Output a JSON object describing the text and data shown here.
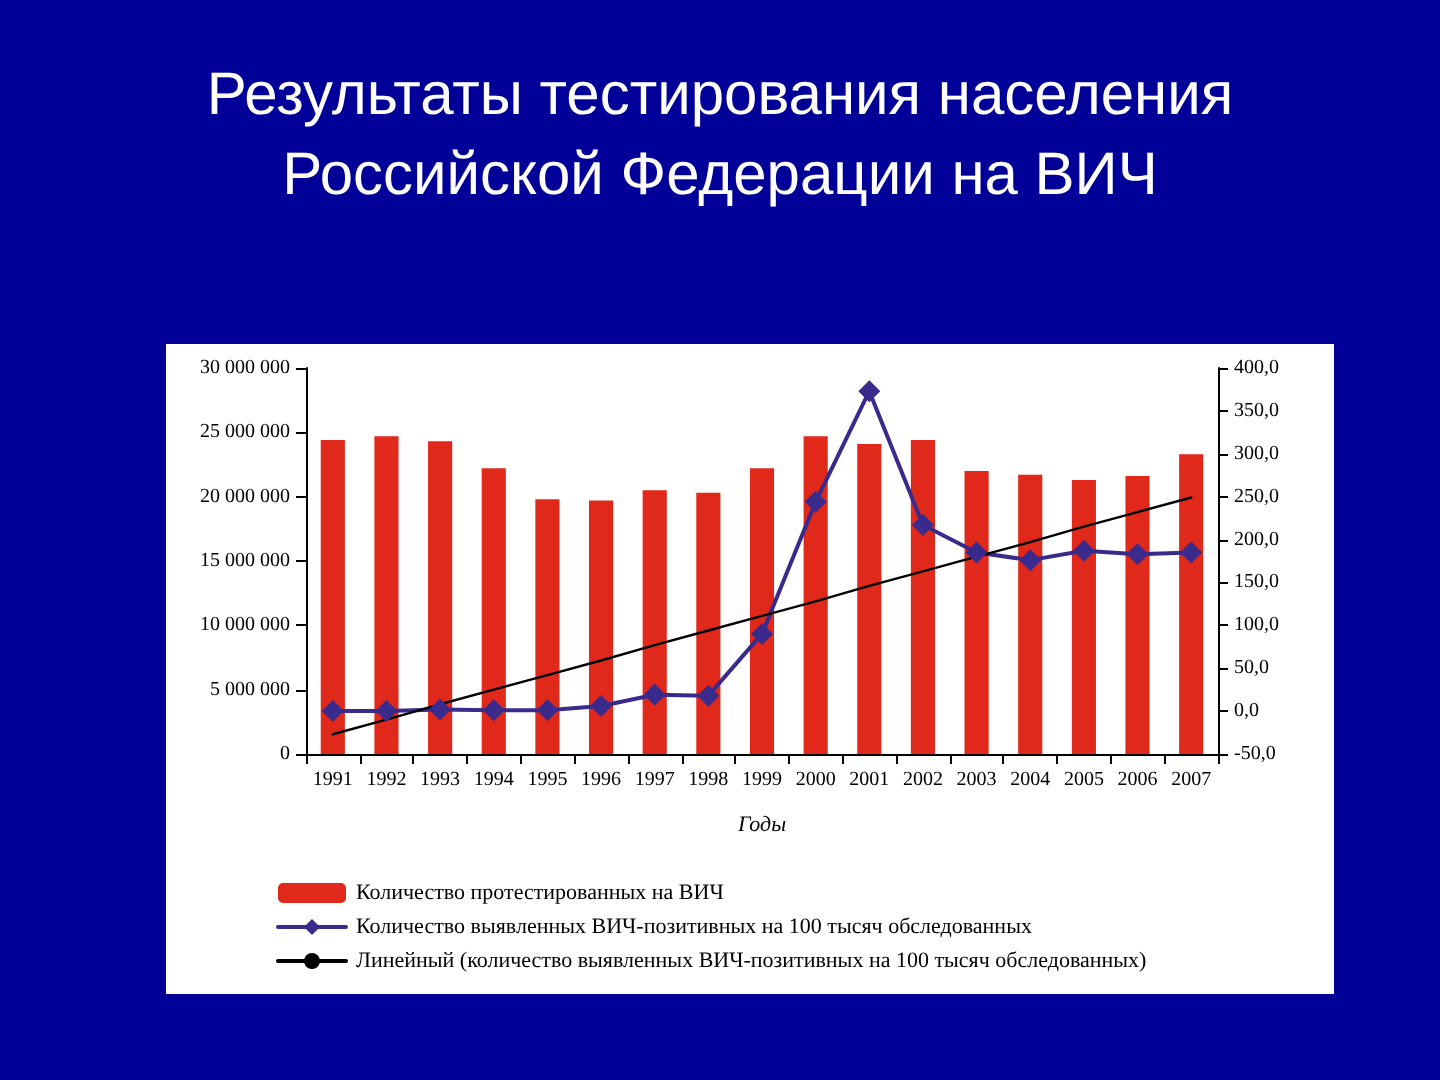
{
  "chart_data": {
    "type": "bar",
    "title": "Результаты тестирования населения Российской Федерации на ВИЧ",
    "xlabel": "Годы",
    "categories": [
      "1991",
      "1992",
      "1993",
      "1994",
      "1995",
      "1996",
      "1997",
      "1998",
      "1999",
      "2000",
      "2001",
      "2002",
      "2003",
      "2004",
      "2005",
      "2006",
      "2007"
    ],
    "series": [
      {
        "name": "Количество протестированных на ВИЧ",
        "color": "#e0291b",
        "values": [
          24400000,
          24700000,
          24300000,
          22200000,
          19800000,
          19700000,
          20500000,
          20300000,
          22200000,
          24700000,
          24100000,
          24400000,
          22000000,
          21700000,
          21300000,
          21600000,
          23300000
        ]
      },
      {
        "name": "Количество выявленных ВИЧ-позитивных на 100 тысяч обследованных",
        "type": "line",
        "axis": "y2",
        "marker": "diamond",
        "color": "#3a2a8c",
        "values": [
          0,
          0,
          2,
          1,
          1,
          6,
          19,
          18,
          90,
          244,
          373,
          217,
          185,
          176,
          187,
          183,
          185
        ]
      },
      {
        "name": "Линейный (количество выявленных ВИЧ-позитивных на 100 тысяч обследованных)",
        "type": "line",
        "axis": "y2",
        "marker": "none",
        "color": "#000000",
        "values": [
          -27,
          -10,
          8,
          25,
          42,
          59,
          77,
          94,
          111,
          128,
          146,
          163,
          180,
          197,
          215,
          232,
          249
        ]
      }
    ],
    "ylim": [
      0,
      30000000
    ],
    "yticks": [
      0,
      {
        "value": 5000000,
        "label": "5 000 000"
      },
      {
        "value": 10000000,
        "label": "10 000 000"
      },
      {
        "value": 15000000,
        "label": "15 000 000"
      },
      {
        "value": 20000000,
        "label": "20 000 000"
      },
      {
        "value": 25000000,
        "label": "25 000 000"
      },
      {
        "value": 30000000,
        "label": "30 000 000"
      }
    ],
    "y2lim": [
      -50,
      400
    ],
    "y2ticks": [
      {
        "value": -50,
        "label": "-50,0"
      },
      {
        "value": 0,
        "label": "0,0"
      },
      {
        "value": 50,
        "label": "50,0"
      },
      {
        "value": 100,
        "label": "100,0"
      },
      {
        "value": 150,
        "label": "150,0"
      },
      {
        "value": 200,
        "label": "200,0"
      },
      {
        "value": 250,
        "label": "250,0"
      },
      {
        "value": 300,
        "label": "300,0"
      },
      {
        "value": 350,
        "label": "350,0"
      },
      {
        "value": 400,
        "label": "400,0"
      }
    ],
    "legend": "bottom",
    "grid": false
  }
}
